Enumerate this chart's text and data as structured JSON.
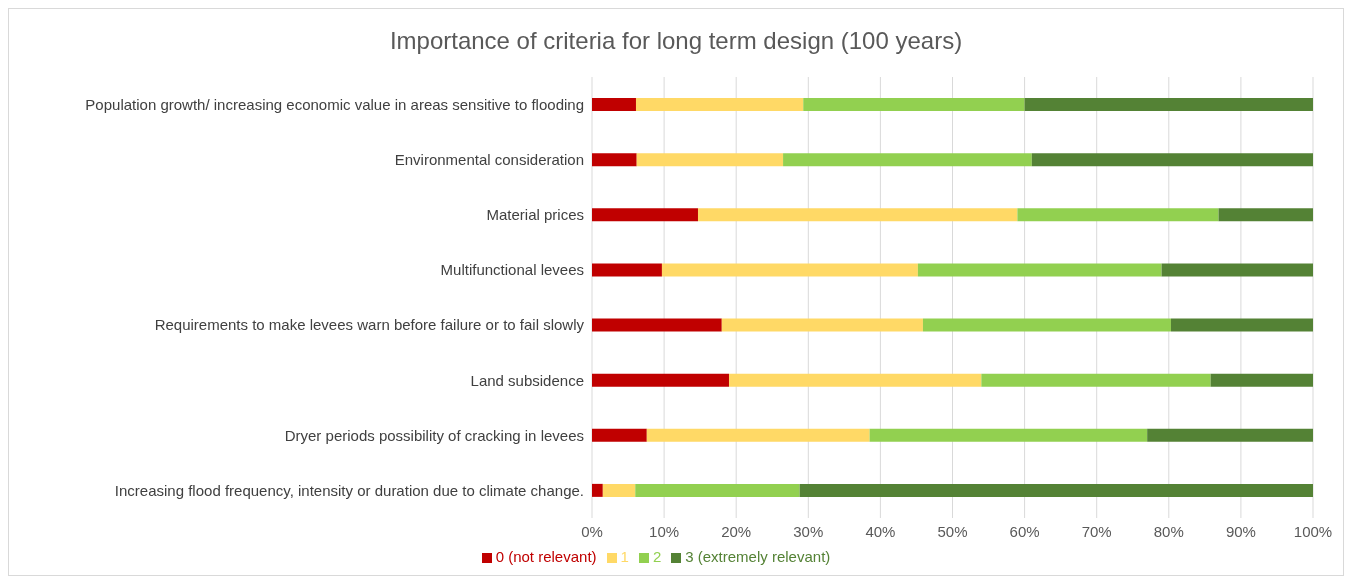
{
  "chart_data": {
    "type": "bar",
    "orientation": "horizontal",
    "stacked": true,
    "title": "Importance of criteria for long term design (100 years)",
    "categories": [
      "Population growth/ increasing economic value in areas sensitive to flooding",
      "Environmental consideration",
      "Material prices",
      "Multifunctional levees",
      "Requirements to make levees warn before failure or to fail slowly",
      "Land subsidence",
      "Dryer periods possibility of cracking in levees",
      "Increasing flood frequency, intensity or duration due to climate change."
    ],
    "series": [
      {
        "name": "0 (not relevant)",
        "color": "#c00000",
        "values": [
          6.1,
          6.2,
          14.7,
          9.7,
          18.0,
          19.0,
          7.6,
          1.5
        ]
      },
      {
        "name": "1",
        "color": "#ffd966",
        "values": [
          23.2,
          20.3,
          44.3,
          35.5,
          27.9,
          35.0,
          30.9,
          4.5
        ]
      },
      {
        "name": "2",
        "color": "#92d050",
        "values": [
          30.7,
          34.5,
          27.9,
          33.8,
          34.4,
          31.8,
          38.5,
          22.8
        ]
      },
      {
        "name": "3 (extremely relevant)",
        "color": "#548235",
        "values": [
          40.0,
          39.0,
          13.1,
          21.0,
          19.7,
          14.2,
          23.0,
          71.2
        ]
      }
    ],
    "xlim": [
      0,
      100
    ],
    "xticks": [
      {
        "value": 0,
        "label": "0%"
      },
      {
        "value": 10,
        "label": "10%"
      },
      {
        "value": 20,
        "label": "20%"
      },
      {
        "value": 30,
        "label": "30%"
      },
      {
        "value": 40,
        "label": "40%"
      },
      {
        "value": 50,
        "label": "50%"
      },
      {
        "value": 60,
        "label": "60%"
      },
      {
        "value": 70,
        "label": "70%"
      },
      {
        "value": 80,
        "label": "80%"
      },
      {
        "value": 90,
        "label": "90%"
      },
      {
        "value": 100,
        "label": "100%"
      }
    ],
    "grid": "x",
    "legend": "bottom"
  }
}
